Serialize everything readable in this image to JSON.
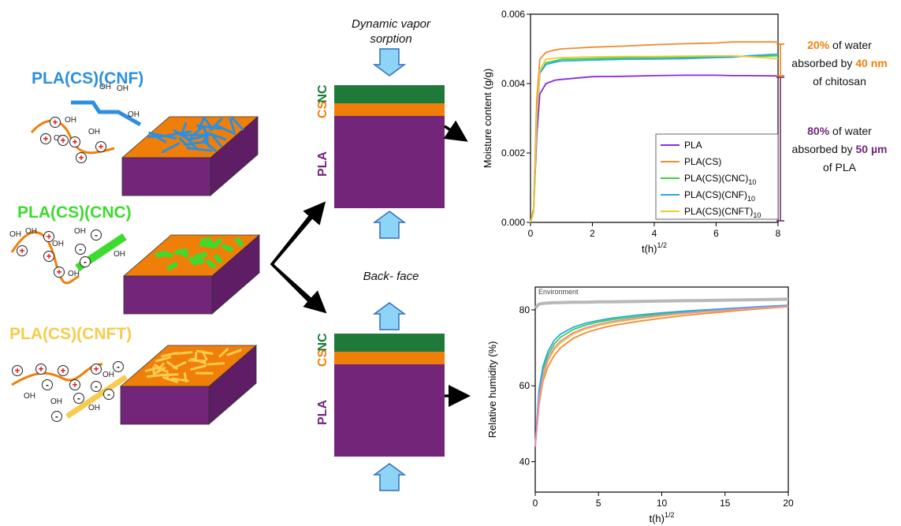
{
  "colors": {
    "pla": "#73257a",
    "cs": "#f07f09",
    "nc": "#1f7a3a",
    "cnf": "#2c8fe0",
    "cnc": "#3ddb2f",
    "cnft": "#f7cb4d",
    "arrow_fill": "#8ed4f7",
    "arrow_stroke": "#2f6fb8",
    "env": "#b8b8b8"
  },
  "left_panel": {
    "samples": [
      {
        "label": "PLA(CS)(CNF)",
        "color": "#2c8fe0"
      },
      {
        "label": "PLA(CS)(CNC)",
        "color": "#3ddb2f"
      },
      {
        "label": "PLA(CS)(CNFT)",
        "color": "#f7cb4d"
      }
    ],
    "oh_label": "OH",
    "plus_label": "+",
    "minus_label": "-"
  },
  "middle_panel": {
    "top_title_line1": "Dynamic vapor",
    "top_title_line2": "sorption",
    "bottom_title": "Back- face",
    "layer_labels": {
      "pla": "PLA",
      "cs": "CS",
      "nc": "NC"
    }
  },
  "annotations": {
    "top": {
      "highlight": "20%",
      "line1_rest": " of water",
      "line2_start": "absorbed by ",
      "highlight2": "40 nm",
      "line3": "of chitosan"
    },
    "bottom": {
      "highlight": "80%",
      "line1_rest": " of water",
      "line2_start": "absorbed by ",
      "highlight2": "50 µm",
      "line3": "of PLA"
    }
  },
  "chart_data": [
    {
      "type": "line",
      "xlabel": "t(h)",
      "xlabel_sup": "1/2",
      "ylabel": "Moisture content (g/g)",
      "xlim": [
        0,
        8
      ],
      "ylim": [
        0.0,
        0.006
      ],
      "x_ticks": [
        0,
        2,
        4,
        6,
        8
      ],
      "y_ticks": [
        "0.000",
        "0.002",
        "0.004",
        "0.006"
      ],
      "legend_position": "bottom-right",
      "x": [
        0,
        0.1,
        0.2,
        0.3,
        0.5,
        0.8,
        1,
        2,
        3,
        4,
        5,
        6,
        6.5,
        7,
        8
      ],
      "series": [
        {
          "name": "PLA",
          "sub": "",
          "color": "#8a2be2",
          "values": [
            0,
            0.0003,
            0.0025,
            0.0037,
            0.004,
            0.0041,
            0.00412,
            0.0042,
            0.00421,
            0.00423,
            0.00424,
            0.00424,
            0.00423,
            0.00423,
            0.00422
          ]
        },
        {
          "name": "PLA(CS)",
          "sub": "",
          "color": "#f08c32",
          "values": [
            0,
            0.0004,
            0.0035,
            0.0047,
            0.0049,
            0.00497,
            0.005,
            0.00505,
            0.00508,
            0.00512,
            0.00515,
            0.00517,
            0.0052,
            0.0052,
            0.0052
          ]
        },
        {
          "name": "PLA(CS)(CNC)",
          "sub": "10",
          "color": "#3ad43a",
          "values": [
            0,
            0.0003,
            0.003,
            0.0043,
            0.0046,
            0.00466,
            0.0047,
            0.00472,
            0.00474,
            0.00475,
            0.00476,
            0.00477,
            0.00478,
            0.00479,
            0.0048
          ]
        },
        {
          "name": "PLA(CS)(CNF)",
          "sub": "10",
          "color": "#2aa7e8",
          "values": [
            0,
            0.0003,
            0.003,
            0.0043,
            0.00455,
            0.00462,
            0.00465,
            0.00468,
            0.0047,
            0.00471,
            0.00472,
            0.00475,
            0.00476,
            0.0048,
            0.00485
          ]
        },
        {
          "name": "PLA(CS)(CNFT)",
          "sub": "10",
          "color": "#f2c82e",
          "values": [
            0,
            0.0003,
            0.003,
            0.0044,
            0.0047,
            0.00473,
            0.00475,
            0.00477,
            0.00478,
            0.00478,
            0.00479,
            0.0048,
            0.0048,
            0.00478,
            0.00472
          ]
        }
      ]
    },
    {
      "type": "line",
      "xlabel": "t(h)",
      "xlabel_sup": "1/2",
      "ylabel": "Relative humidity (%)",
      "xlim": [
        0,
        20
      ],
      "ylim": [
        32,
        86
      ],
      "x_ticks": [
        0,
        5,
        10,
        15,
        20
      ],
      "y_ticks": [
        40,
        60,
        80
      ],
      "annotation": "Environment",
      "x": [
        0,
        0.3,
        0.6,
        1,
        1.5,
        2,
        3,
        4,
        5,
        6,
        8,
        10,
        12,
        14,
        16,
        18,
        20
      ],
      "series": [
        {
          "name": "Environment",
          "color": "#b8b8b8",
          "values": [
            80.5,
            81.5,
            81.7,
            81.8,
            81.9,
            81.9,
            82.0,
            82.0,
            82.1,
            82.1,
            82.2,
            82.3,
            82.4,
            82.5,
            82.6,
            82.7,
            82.8
          ]
        },
        {
          "color": "#3ad43a",
          "values": [
            44,
            58,
            64,
            68,
            71,
            72.8,
            74.8,
            76.0,
            76.8,
            77.4,
            78.2,
            78.9,
            79.4,
            79.9,
            80.3,
            80.7,
            81.0
          ]
        },
        {
          "color": "#2aa7e8",
          "values": [
            44,
            59,
            65,
            69,
            72,
            73.6,
            75.4,
            76.5,
            77.2,
            77.8,
            78.6,
            79.2,
            79.7,
            80.1,
            80.5,
            80.9,
            81.2
          ]
        },
        {
          "color": "#f08c32",
          "values": [
            44,
            55,
            61,
            65,
            68,
            70.0,
            72.5,
            74.0,
            75.0,
            75.8,
            76.9,
            77.8,
            78.6,
            79.2,
            79.8,
            80.3,
            80.8
          ]
        },
        {
          "color": "#f2c82e",
          "values": [
            44,
            56,
            62,
            66.5,
            69.5,
            71.3,
            73.6,
            75.0,
            75.9,
            76.6,
            77.6,
            78.4,
            79.1,
            79.6,
            80.1,
            80.5,
            80.9
          ]
        },
        {
          "color": "#e88ac0",
          "values": [
            44,
            56.5,
            62.5,
            67,
            70,
            71.8,
            74.0,
            75.3,
            76.2,
            76.9,
            77.8,
            78.6,
            79.2,
            79.7,
            80.2,
            80.6,
            81.0
          ]
        }
      ]
    }
  ]
}
